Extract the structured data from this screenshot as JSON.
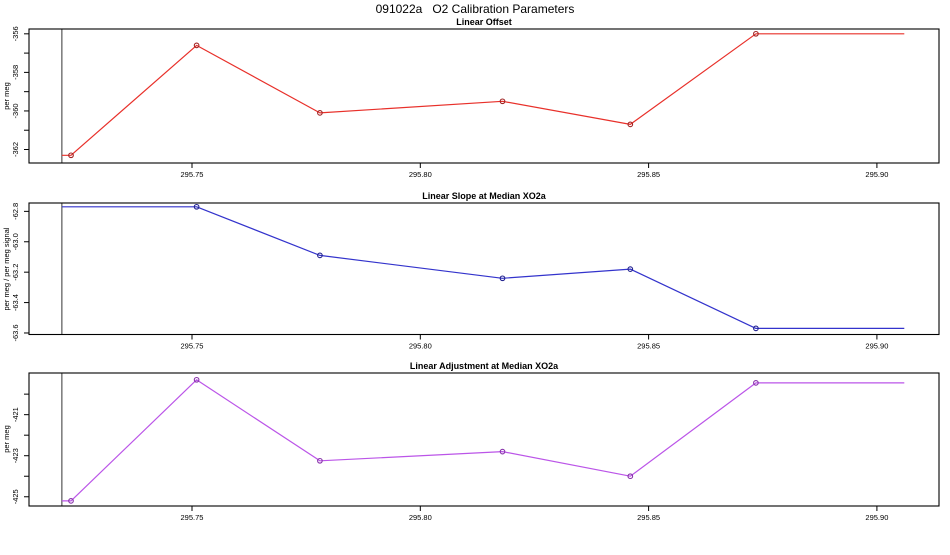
{
  "title": "091022a   O2 Calibration Parameters",
  "colors": {
    "offset_line": "#e8302a",
    "offset_marker": "#a02424",
    "slope_line": "#3333cc",
    "slope_marker": "#24248f",
    "adjustment_line": "#bb55e8",
    "adjustment_marker": "#8833aa",
    "vline": "#474747",
    "axis": "#000000",
    "background": "#ffffff"
  },
  "chart_data": [
    {
      "type": "line",
      "title": "Linear Offset",
      "ylabel": "per meg",
      "line_color_key": "offset_line",
      "marker_color_key": "offset_marker",
      "x": [
        295.7235,
        295.751,
        295.778,
        295.818,
        295.846,
        295.8735
      ],
      "y": [
        -362.3,
        -356.6,
        -360.1,
        -359.5,
        -360.7,
        -356.0
      ],
      "extend_left_x": 295.7215,
      "extend_right_x": 295.906,
      "vline_x": 295.7215,
      "xlim": [
        295.7143,
        295.9136
      ],
      "ylim": [
        -362.7,
        -355.75
      ],
      "xticks": [
        295.75,
        295.8,
        295.85,
        295.9
      ],
      "xtick_labels": [
        "295.75",
        "295.80",
        "295.85",
        "295.90"
      ],
      "yticks": [
        -356,
        -357,
        -358,
        -359,
        -360,
        -361,
        -362
      ],
      "ytick_labels": [
        "-356",
        "",
        "-358",
        "",
        "-360",
        "",
        "-362"
      ],
      "grid": false,
      "legend": "none",
      "marker": "open-circle"
    },
    {
      "type": "line",
      "title": "Linear Slope at Median XO2a",
      "ylabel": "per meg / per meg signal",
      "line_color_key": "slope_line",
      "marker_color_key": "slope_marker",
      "x": [
        295.751,
        295.778,
        295.818,
        295.846,
        295.8735
      ],
      "y": [
        -62.77,
        -63.09,
        -63.24,
        -63.18,
        -63.57
      ],
      "extend_left_x": 295.7215,
      "extend_right_x": 295.906,
      "vline_x": 295.7215,
      "xlim": [
        295.7143,
        295.9136
      ],
      "ylim": [
        -63.61,
        -62.745
      ],
      "xticks": [
        295.75,
        295.8,
        295.85,
        295.9
      ],
      "xtick_labels": [
        "295.75",
        "295.80",
        "295.85",
        "295.90"
      ],
      "yticks": [
        -62.8,
        -63.0,
        -63.2,
        -63.4,
        -63.6
      ],
      "ytick_labels": [
        "-62.8",
        "-63.0",
        "-63.2",
        "-63.4",
        "-63.6"
      ],
      "grid": false,
      "legend": "none",
      "marker": "open-circle"
    },
    {
      "type": "line",
      "title": "Linear Adjustment at Median XO2a",
      "ylabel": "per meg",
      "line_color_key": "adjustment_line",
      "marker_color_key": "adjustment_marker",
      "x": [
        295.7235,
        295.751,
        295.778,
        295.818,
        295.846,
        295.8735
      ],
      "y": [
        -425.2,
        -419.3,
        -423.25,
        -422.8,
        -424.0,
        -419.45
      ],
      "extend_left_x": 295.7215,
      "extend_right_x": 295.906,
      "vline_x": 295.7215,
      "xlim": [
        295.7143,
        295.9136
      ],
      "ylim": [
        -425.45,
        -418.97
      ],
      "xticks": [
        295.75,
        295.8,
        295.85,
        295.9
      ],
      "xtick_labels": [
        "295.75",
        "295.80",
        "295.85",
        "295.90"
      ],
      "yticks": [
        -420,
        -421,
        -422,
        -423,
        -424,
        -425
      ],
      "ytick_labels": [
        "",
        "-421",
        "",
        "-423",
        "",
        "-425"
      ],
      "grid": false,
      "legend": "none",
      "marker": "open-circle"
    }
  ]
}
